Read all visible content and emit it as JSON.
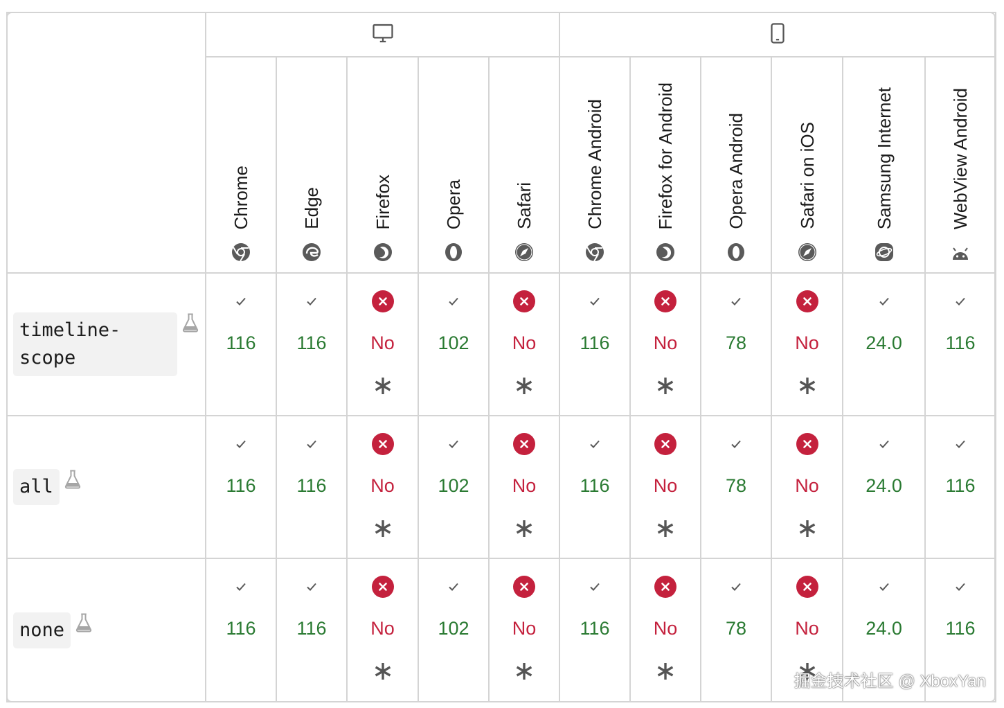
{
  "platforms": [
    {
      "name": "desktop",
      "icon": "desktop-icon"
    },
    {
      "name": "mobile",
      "icon": "mobile-icon"
    }
  ],
  "browsers": [
    {
      "name": "Chrome",
      "icon": "chrome-icon",
      "platform": "desktop"
    },
    {
      "name": "Edge",
      "icon": "edge-icon",
      "platform": "desktop"
    },
    {
      "name": "Firefox",
      "icon": "firefox-icon",
      "platform": "desktop"
    },
    {
      "name": "Opera",
      "icon": "opera-icon",
      "platform": "desktop"
    },
    {
      "name": "Safari",
      "icon": "safari-icon",
      "platform": "desktop"
    },
    {
      "name": "Chrome Android",
      "icon": "chrome-icon",
      "platform": "mobile"
    },
    {
      "name": "Firefox for Android",
      "icon": "firefox-icon",
      "platform": "mobile"
    },
    {
      "name": "Opera Android",
      "icon": "opera-icon",
      "platform": "mobile"
    },
    {
      "name": "Safari on iOS",
      "icon": "safari-icon",
      "platform": "mobile"
    },
    {
      "name": "Samsung Internet",
      "icon": "samsung-internet-icon",
      "platform": "mobile"
    },
    {
      "name": "WebView Android",
      "icon": "android-icon",
      "platform": "mobile"
    }
  ],
  "features": [
    {
      "name": "timeline-scope",
      "experimental": true,
      "support": [
        {
          "status": "yes",
          "version": "116"
        },
        {
          "status": "yes",
          "version": "116"
        },
        {
          "status": "no",
          "version": "No",
          "note": true
        },
        {
          "status": "yes",
          "version": "102"
        },
        {
          "status": "no",
          "version": "No",
          "note": true
        },
        {
          "status": "yes",
          "version": "116"
        },
        {
          "status": "no",
          "version": "No",
          "note": true
        },
        {
          "status": "yes",
          "version": "78"
        },
        {
          "status": "no",
          "version": "No",
          "note": true
        },
        {
          "status": "yes",
          "version": "24.0"
        },
        {
          "status": "yes",
          "version": "116"
        }
      ]
    },
    {
      "name": "all",
      "experimental": true,
      "support": [
        {
          "status": "yes",
          "version": "116"
        },
        {
          "status": "yes",
          "version": "116"
        },
        {
          "status": "no",
          "version": "No",
          "note": true
        },
        {
          "status": "yes",
          "version": "102"
        },
        {
          "status": "no",
          "version": "No",
          "note": true
        },
        {
          "status": "yes",
          "version": "116"
        },
        {
          "status": "no",
          "version": "No",
          "note": true
        },
        {
          "status": "yes",
          "version": "78"
        },
        {
          "status": "no",
          "version": "No",
          "note": true
        },
        {
          "status": "yes",
          "version": "24.0"
        },
        {
          "status": "yes",
          "version": "116"
        }
      ]
    },
    {
      "name": "none",
      "experimental": true,
      "support": [
        {
          "status": "yes",
          "version": "116"
        },
        {
          "status": "yes",
          "version": "116"
        },
        {
          "status": "no",
          "version": "No",
          "note": true
        },
        {
          "status": "yes",
          "version": "102"
        },
        {
          "status": "no",
          "version": "No",
          "note": true
        },
        {
          "status": "yes",
          "version": "116"
        },
        {
          "status": "no",
          "version": "No",
          "note": true
        },
        {
          "status": "yes",
          "version": "78"
        },
        {
          "status": "no",
          "version": "No",
          "note": true
        },
        {
          "status": "yes",
          "version": "24.0"
        },
        {
          "status": "yes",
          "version": "116"
        }
      ]
    }
  ],
  "watermark": "掘金技术社区 @ XboxYan",
  "colors": {
    "supported_text": "#2a7a32",
    "unsupported_text": "#c4213d",
    "unsupported_icon_bg": "#c4213d",
    "border": "#d4d4d4",
    "code_bg": "#f2f2f2"
  }
}
